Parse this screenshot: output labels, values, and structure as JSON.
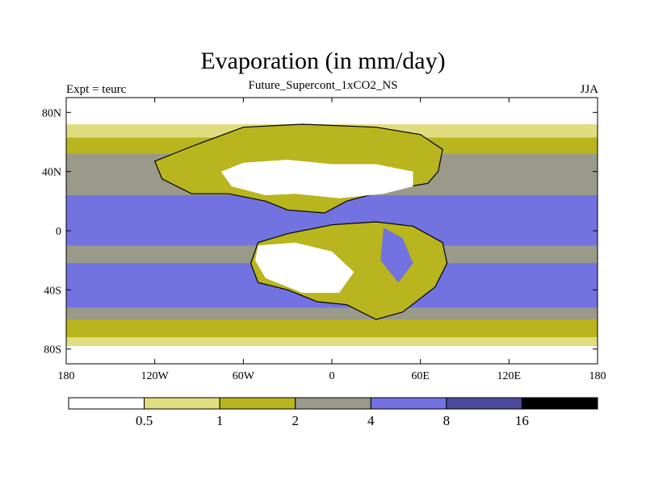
{
  "chart_data": {
    "type": "heatmap",
    "title": "Evaporation (in mm/day)",
    "subtitle": "Future_Supercont_1xCO2_NS",
    "left_label": "Expt = teurc",
    "right_label": "JJA",
    "x_ticks": [
      "180",
      "120W",
      "60W",
      "0",
      "60E",
      "120E",
      "180"
    ],
    "y_ticks": [
      "80N",
      "40N",
      "0",
      "40S",
      "80S"
    ],
    "x_tick_values": [
      -180,
      -120,
      -60,
      0,
      60,
      120,
      180
    ],
    "y_tick_values": [
      80,
      40,
      0,
      -40,
      -80
    ],
    "xlim": [
      -180,
      180
    ],
    "ylim": [
      -90,
      90
    ],
    "levels": [
      0.5,
      1,
      2,
      4,
      8,
      16
    ],
    "level_labels": [
      "0.5",
      "1",
      "2",
      "4",
      "8",
      "16"
    ],
    "colors": [
      "#ffffff",
      "#e0dd80",
      "#b8b51e",
      "#9a9a8a",
      "#7272e0",
      "#4a4a9e",
      "#000000"
    ],
    "bands": [
      {
        "lat": [
          90,
          72
        ],
        "bin": 0
      },
      {
        "lat": [
          72,
          63
        ],
        "bin": 1
      },
      {
        "lat": [
          63,
          52
        ],
        "bin": 2
      },
      {
        "lat": [
          52,
          24
        ],
        "bin": 3
      },
      {
        "lat": [
          24,
          -10
        ],
        "bin": 4
      },
      {
        "lat": [
          -10,
          -22
        ],
        "bin": 3
      },
      {
        "lat": [
          -22,
          -52
        ],
        "bin": 4
      },
      {
        "lat": [
          -52,
          -60
        ],
        "bin": 3
      },
      {
        "lat": [
          -60,
          -72
        ],
        "bin": 2
      },
      {
        "lat": [
          -72,
          -78
        ],
        "bin": 1
      },
      {
        "lat": [
          -78,
          -90
        ],
        "bin": 0
      }
    ],
    "land_regions": [
      {
        "name": "north-landmass",
        "bin": 2,
        "lonlat": [
          [
            -120,
            47
          ],
          [
            -95,
            57
          ],
          [
            -60,
            70
          ],
          [
            -20,
            72
          ],
          [
            30,
            70
          ],
          [
            60,
            65
          ],
          [
            75,
            55
          ],
          [
            72,
            40
          ],
          [
            65,
            32
          ],
          [
            40,
            28
          ],
          [
            10,
            20
          ],
          [
            -5,
            12
          ],
          [
            -30,
            14
          ],
          [
            -45,
            20
          ],
          [
            -70,
            25
          ],
          [
            -95,
            25
          ],
          [
            -115,
            35
          ]
        ]
      },
      {
        "name": "north-interior-dry",
        "bin": 0,
        "lonlat": [
          [
            -75,
            40
          ],
          [
            -60,
            46
          ],
          [
            -30,
            48
          ],
          [
            0,
            45
          ],
          [
            30,
            45
          ],
          [
            55,
            40
          ],
          [
            55,
            30
          ],
          [
            35,
            25
          ],
          [
            5,
            22
          ],
          [
            -25,
            25
          ],
          [
            -45,
            24
          ],
          [
            -68,
            30
          ]
        ]
      },
      {
        "name": "south-landmass",
        "bin": 2,
        "lonlat": [
          [
            -50,
            -8
          ],
          [
            -30,
            -2
          ],
          [
            0,
            4
          ],
          [
            30,
            6
          ],
          [
            55,
            3
          ],
          [
            75,
            -8
          ],
          [
            78,
            -22
          ],
          [
            70,
            -38
          ],
          [
            48,
            -55
          ],
          [
            30,
            -60
          ],
          [
            10,
            -50
          ],
          [
            -10,
            -48
          ],
          [
            -30,
            -40
          ],
          [
            -50,
            -35
          ],
          [
            -55,
            -22
          ]
        ]
      },
      {
        "name": "south-dry",
        "bin": 0,
        "lonlat": [
          [
            -50,
            -10
          ],
          [
            -25,
            -8
          ],
          [
            0,
            -14
          ],
          [
            15,
            -28
          ],
          [
            5,
            -42
          ],
          [
            -20,
            -42
          ],
          [
            -45,
            -32
          ],
          [
            -52,
            -20
          ]
        ]
      },
      {
        "name": "southeast-moist",
        "bin": 4,
        "lonlat": [
          [
            35,
            2
          ],
          [
            48,
            -5
          ],
          [
            55,
            -22
          ],
          [
            45,
            -35
          ],
          [
            33,
            -20
          ]
        ]
      }
    ]
  }
}
